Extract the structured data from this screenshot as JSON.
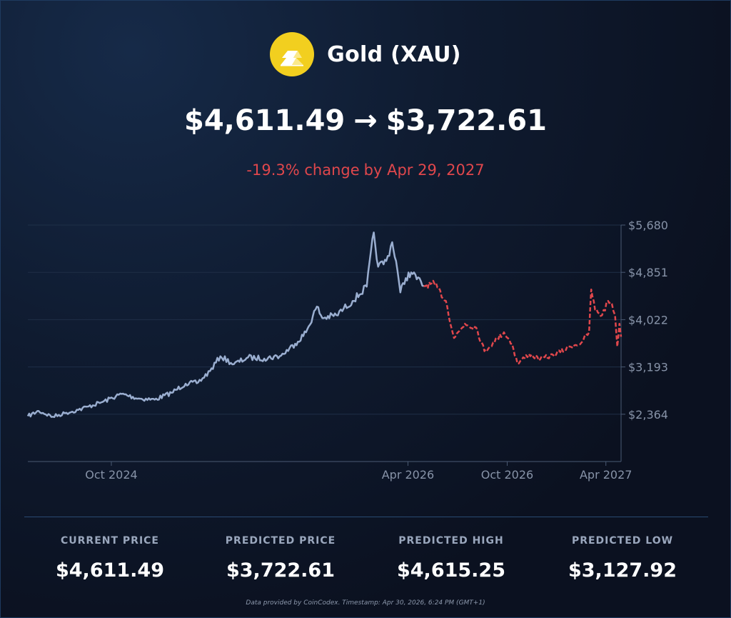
{
  "header": {
    "icon": "gold-bars-icon",
    "title": "Gold (XAU)",
    "current_price": "$4,611.49",
    "arrow": "→",
    "predicted_price": "$3,722.61",
    "change_pct": "-19.3% change",
    "change_date": "by Apr 29, 2027"
  },
  "colors": {
    "background": "#0b1120",
    "history_line": "#9aaed0",
    "forecast_line": "#e0474c",
    "grid": "#1f2f47",
    "axis_text": "#8793a8",
    "logo": "#f2cf1f",
    "change_text": "#e0474c"
  },
  "chart_data": {
    "type": "line",
    "title": "",
    "xlabel": "",
    "ylabel": "",
    "x_tick_labels": [
      "Oct 2024",
      "Apr 2026",
      "Oct 2026",
      "Apr 2027"
    ],
    "y_tick_labels": [
      "$5,680",
      "$4,851",
      "$4,022",
      "$3,193",
      "$2,364"
    ],
    "y_ticks": [
      5680,
      4851,
      4022,
      3193,
      2364
    ],
    "ylim": [
      1535,
      5680
    ],
    "xlim": [
      "2024-04-30",
      "2027-04-29"
    ],
    "x_ticks": [
      "2024-10-01",
      "2026-04-01",
      "2026-10-01",
      "2027-04-01"
    ],
    "grid": true,
    "y_axis_position": "right",
    "series": [
      {
        "style": "solid",
        "points": [
          [
            "2024-04-30",
            2330
          ],
          [
            "2024-05-20",
            2420
          ],
          [
            "2024-06-15",
            2320
          ],
          [
            "2024-07-10",
            2390
          ],
          [
            "2024-08-01",
            2440
          ],
          [
            "2024-08-20",
            2500
          ],
          [
            "2024-09-15",
            2580
          ],
          [
            "2024-10-20",
            2720
          ],
          [
            "2024-11-20",
            2640
          ],
          [
            "2024-12-20",
            2620
          ],
          [
            "2025-01-20",
            2740
          ],
          [
            "2025-02-15",
            2900
          ],
          [
            "2025-03-10",
            2920
          ],
          [
            "2025-04-01",
            3120
          ],
          [
            "2025-04-20",
            3380
          ],
          [
            "2025-05-15",
            3240
          ],
          [
            "2025-06-10",
            3360
          ],
          [
            "2025-07-10",
            3340
          ],
          [
            "2025-08-10",
            3390
          ],
          [
            "2025-09-05",
            3600
          ],
          [
            "2025-09-25",
            3800
          ],
          [
            "2025-10-15",
            4250
          ],
          [
            "2025-10-25",
            4050
          ],
          [
            "2025-11-20",
            4100
          ],
          [
            "2025-12-20",
            4350
          ],
          [
            "2026-01-15",
            4600
          ],
          [
            "2026-01-28",
            5550
          ],
          [
            "2026-02-05",
            4950
          ],
          [
            "2026-02-20",
            5050
          ],
          [
            "2026-03-03",
            5380
          ],
          [
            "2026-03-10",
            5050
          ],
          [
            "2026-03-18",
            4500
          ],
          [
            "2026-03-28",
            4750
          ],
          [
            "2026-04-07",
            4850
          ],
          [
            "2026-04-30",
            4611
          ]
        ]
      },
      {
        "style": "dashed",
        "points": [
          [
            "2026-04-30",
            4611
          ],
          [
            "2026-05-20",
            4650
          ],
          [
            "2026-06-10",
            4350
          ],
          [
            "2026-06-25",
            3700
          ],
          [
            "2026-07-15",
            3950
          ],
          [
            "2026-08-05",
            3880
          ],
          [
            "2026-08-20",
            3470
          ],
          [
            "2026-09-05",
            3620
          ],
          [
            "2026-09-25",
            3800
          ],
          [
            "2026-10-10",
            3600
          ],
          [
            "2026-10-20",
            3250
          ],
          [
            "2026-11-10",
            3420
          ],
          [
            "2026-12-01",
            3330
          ],
          [
            "2026-12-25",
            3400
          ],
          [
            "2027-01-25",
            3550
          ],
          [
            "2027-02-15",
            3620
          ],
          [
            "2027-03-01",
            3800
          ],
          [
            "2027-03-05",
            4550
          ],
          [
            "2027-03-12",
            4200
          ],
          [
            "2027-03-25",
            4100
          ],
          [
            "2027-04-05",
            4350
          ],
          [
            "2027-04-12",
            4300
          ],
          [
            "2027-04-18",
            4100
          ],
          [
            "2027-04-22",
            3550
          ],
          [
            "2027-04-26",
            3950
          ],
          [
            "2027-04-29",
            3722
          ]
        ]
      }
    ]
  },
  "stats": [
    {
      "label": "CURRENT PRICE",
      "value": "$4,611.49"
    },
    {
      "label": "PREDICTED PRICE",
      "value": "$3,722.61"
    },
    {
      "label": "PREDICTED HIGH",
      "value": "$4,615.25"
    },
    {
      "label": "PREDICTED LOW",
      "value": "$3,127.92"
    }
  ],
  "footer": "Data provided by CoinCodex. Timestamp: Apr 30, 2026, 6:24 PM (GMT+1)"
}
